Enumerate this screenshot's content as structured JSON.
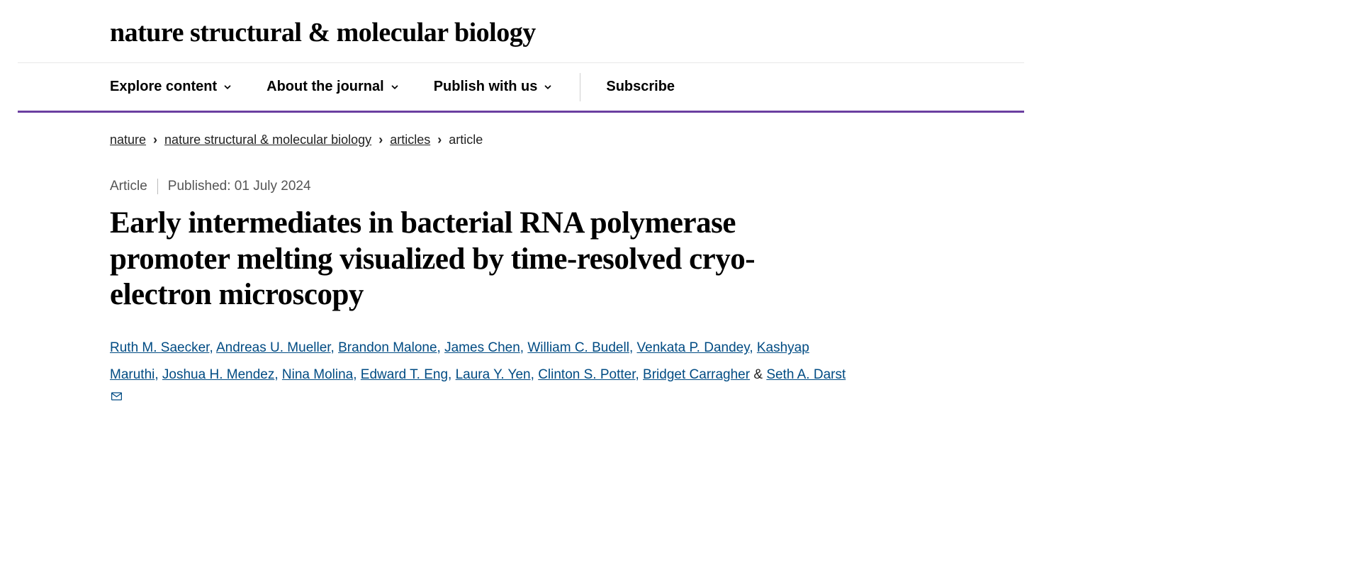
{
  "journal": {
    "title": "nature structural & molecular biology"
  },
  "nav": {
    "items": [
      {
        "label": "Explore content",
        "has_chevron": true
      },
      {
        "label": "About the journal",
        "has_chevron": true
      },
      {
        "label": "Publish with us",
        "has_chevron": true
      }
    ],
    "subscribe": "Subscribe"
  },
  "breadcrumb": {
    "items": [
      {
        "label": "nature",
        "link": true
      },
      {
        "label": "nature structural & molecular biology",
        "link": true
      },
      {
        "label": "articles",
        "link": true
      },
      {
        "label": "article",
        "link": false
      }
    ],
    "separator": "›"
  },
  "meta": {
    "type": "Article",
    "published": "Published: 01 July 2024"
  },
  "article": {
    "title": "Early intermediates in bacterial RNA polymerase promoter melting visualized by time-resolved cryo-electron microscopy"
  },
  "authors": [
    "Ruth M. Saecker",
    "Andreas U. Mueller",
    "Brandon Malone",
    "James Chen",
    "William C. Budell",
    "Venkata P. Dandey",
    "Kashyap Maruthi",
    "Joshua H. Mendez",
    "Nina Molina",
    "Edward T. Eng",
    "Laura Y. Yen",
    "Clinton S. Potter",
    "Bridget Carragher",
    "Seth A. Darst"
  ],
  "corresponding_index": 13,
  "colors": {
    "accent": "#6b3fa0",
    "link": "#004b83",
    "text": "#222222"
  }
}
